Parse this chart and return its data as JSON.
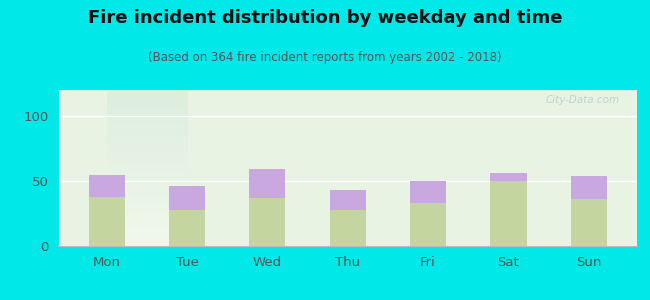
{
  "title": "Fire incident distribution by weekday and time",
  "subtitle": "(Based on 364 fire incident reports from years 2002 - 2018)",
  "categories": [
    "Mon",
    "Tue",
    "Wed",
    "Thu",
    "Fri",
    "Sat",
    "Sun"
  ],
  "pm_values": [
    38,
    28,
    37,
    28,
    33,
    50,
    36
  ],
  "am_values": [
    17,
    18,
    22,
    15,
    17,
    6,
    18
  ],
  "am_color": "#c9a8e0",
  "pm_color": "#c5d5a0",
  "background_outer": "#00e8e8",
  "ylim": [
    0,
    120
  ],
  "yticks": [
    0,
    50,
    100
  ],
  "bar_width": 0.45,
  "title_fontsize": 13,
  "subtitle_fontsize": 8.5,
  "tick_fontsize": 9.5,
  "watermark": "City-Data.com"
}
